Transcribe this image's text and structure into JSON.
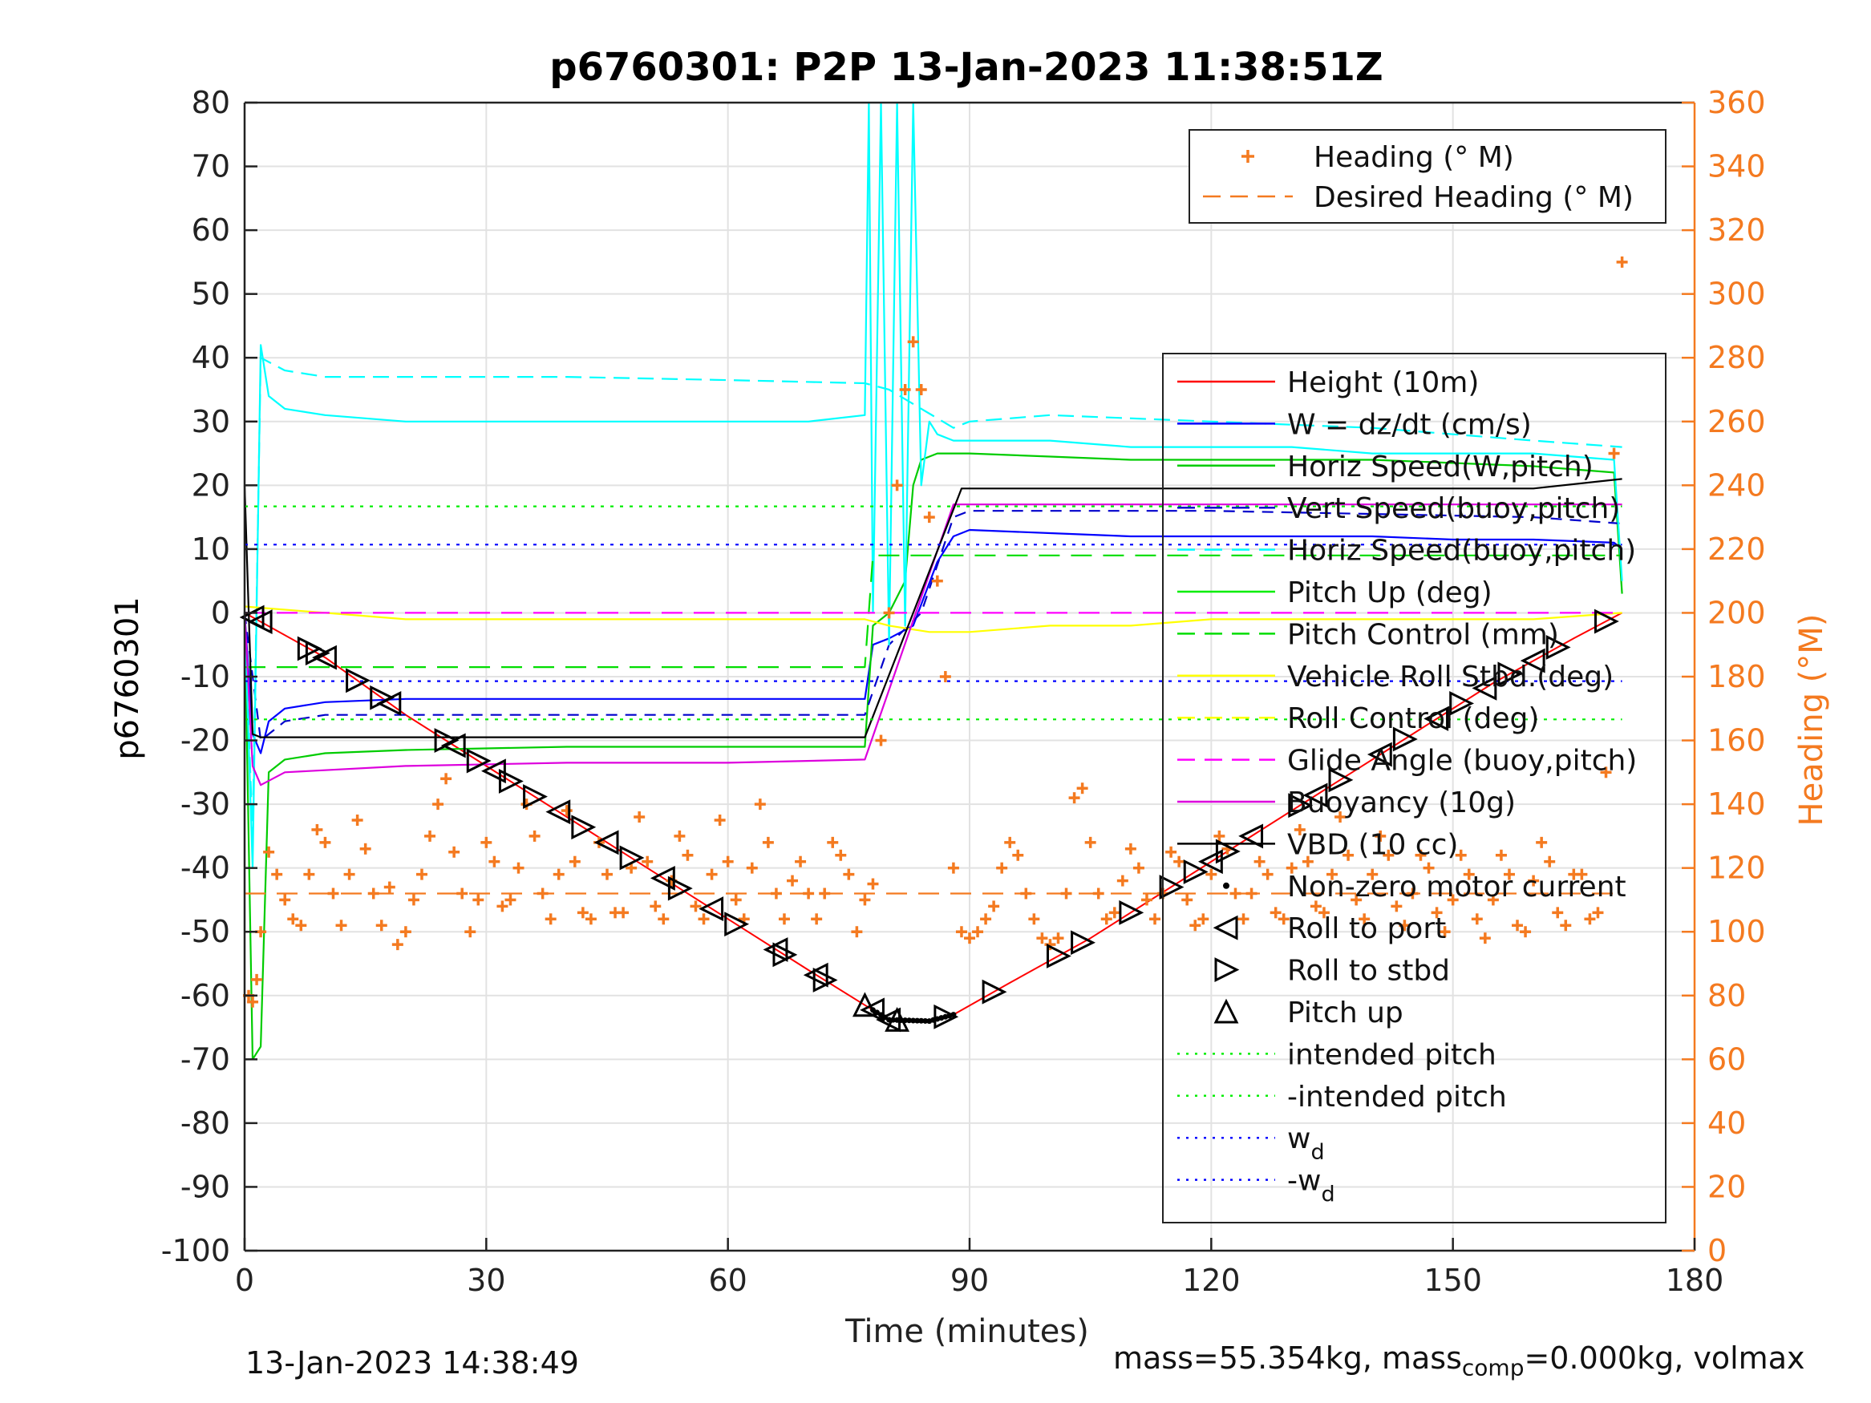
{
  "chart_data": {
    "type": "line",
    "title": "p6760301: P2P 13-Jan-2023 11:38:51Z",
    "xlabel": "Time (minutes)",
    "ylabel": "p6760301",
    "y2label": "Heading (°M)",
    "xlim": [
      0,
      180
    ],
    "ylim": [
      -100,
      80
    ],
    "y2lim": [
      0,
      360
    ],
    "xticks": [
      0,
      30,
      60,
      90,
      120,
      150,
      180
    ],
    "yticks": [
      -100,
      -90,
      -80,
      -70,
      -60,
      -50,
      -40,
      -30,
      -20,
      -10,
      0,
      10,
      20,
      30,
      40,
      50,
      60,
      70,
      80
    ],
    "y2ticks": [
      0,
      20,
      40,
      60,
      80,
      100,
      120,
      140,
      160,
      180,
      200,
      220,
      240,
      260,
      280,
      300,
      320,
      340,
      360
    ],
    "grid": true,
    "colors": {
      "height": "#ff0000",
      "w": "#0000ff",
      "horiz_speed_w": "#00cc00",
      "vert_speed_buoy": "#0000cc",
      "horiz_speed_buoy": "#00ffff",
      "pitch_up": "#00ee00",
      "pitch_control": "#00dd00",
      "roll_std": "#ffff00",
      "roll_control": "#ffff00",
      "glide_angle": "#ff00ff",
      "buoyancy": "#dd00dd",
      "vbd": "#000000",
      "heading": "#f47a20",
      "intended_pitch": "#00ee00",
      "wd": "#0000ff"
    },
    "legend_heading": [
      {
        "label": "Heading (° M)",
        "style": "plus"
      },
      {
        "label": "Desired Heading (° M)",
        "style": "dash"
      }
    ],
    "legend_main": [
      {
        "label": "Height (10m)",
        "style": "solid",
        "color": "#ff0000"
      },
      {
        "label": "W = dz/dt (cm/s)",
        "style": "solid",
        "color": "#0000ff"
      },
      {
        "label": "Horiz Speed(W,pitch)",
        "style": "solid",
        "color": "#00cc00"
      },
      {
        "label": "Vert Speed(buoy,pitch)",
        "style": "dash",
        "color": "#0000cc"
      },
      {
        "label": "Horiz Speed(buoy,pitch)",
        "style": "dash",
        "color": "#00ffff"
      },
      {
        "label": "Pitch Up (deg)",
        "style": "solid",
        "color": "#00ee00"
      },
      {
        "label": "Pitch Control (mm)",
        "style": "dash",
        "color": "#00dd00"
      },
      {
        "label": "Vehicle Roll Stbd.(deg)",
        "style": "solid",
        "color": "#ffff00"
      },
      {
        "label": "Roll Control (deg)",
        "style": "dash",
        "color": "#ffff00"
      },
      {
        "label": "Glide Angle (buoy,pitch)",
        "style": "dash",
        "color": "#ff00ff"
      },
      {
        "label": "Buoyancy (10g)",
        "style": "solid",
        "color": "#dd00dd"
      },
      {
        "label": "VBD (10 cc)",
        "style": "solid",
        "color": "#000000"
      },
      {
        "label": "Non-zero motor current",
        "style": "dot",
        "color": "#000000"
      },
      {
        "label": "Roll to port",
        "style": "tri-left",
        "color": "#000000"
      },
      {
        "label": "Roll to stbd",
        "style": "tri-right",
        "color": "#000000"
      },
      {
        "label": "Pitch up",
        "style": "tri-up",
        "color": "#000000"
      },
      {
        "label": "intended pitch",
        "style": "dotted",
        "color": "#00ee00"
      },
      {
        "label": "-intended pitch",
        "style": "dotted",
        "color": "#00ee00"
      },
      {
        "label": "w",
        "sub": "d",
        "style": "dotted",
        "color": "#0000ff"
      },
      {
        "label": "-w",
        "sub": "d",
        "style": "dotted",
        "color": "#0000ff"
      }
    ],
    "series": [
      {
        "key": "height",
        "axis": "left",
        "dash": "",
        "x": [
          0,
          10,
          20,
          30,
          40,
          50,
          60,
          70,
          77,
          80,
          85,
          88,
          95,
          105,
          115,
          125,
          135,
          145,
          155,
          165,
          171
        ],
        "y": [
          0,
          -7,
          -16,
          -24,
          -32,
          -40,
          -48,
          -56,
          -61.5,
          -63.8,
          -64,
          -63,
          -58,
          -51,
          -43,
          -35,
          -27,
          -19,
          -11,
          -4,
          0
        ]
      },
      {
        "key": "w",
        "axis": "left",
        "dash": "",
        "x": [
          0,
          1,
          2,
          3,
          5,
          10,
          20,
          40,
          60,
          77,
          78,
          80,
          83,
          86,
          88,
          90,
          100,
          110,
          120,
          130,
          140,
          150,
          160,
          170,
          171
        ],
        "y": [
          0,
          -19,
          -22,
          -17,
          -15,
          -14,
          -13.5,
          -13.5,
          -13.5,
          -13.5,
          -5,
          -4,
          -2,
          8,
          12,
          13,
          12.5,
          12,
          12,
          12,
          12,
          11.5,
          11.5,
          11,
          10
        ]
      },
      {
        "key": "horiz_speed_w",
        "axis": "left",
        "dash": "",
        "x": [
          0,
          1,
          2,
          3,
          5,
          10,
          20,
          40,
          60,
          77,
          78,
          80,
          82,
          83,
          84,
          86,
          88,
          90,
          100,
          110,
          120,
          130,
          140,
          150,
          160,
          170,
          171
        ],
        "y": [
          0,
          -70,
          -68,
          -25,
          -23,
          -22,
          -21.5,
          -21,
          -21,
          -21,
          -2,
          0,
          5,
          20,
          24,
          25,
          25,
          25,
          24.5,
          24,
          24,
          24,
          24,
          23.5,
          23,
          22,
          3
        ]
      },
      {
        "key": "vert_speed_buoy",
        "axis": "left",
        "dash": "14,10",
        "x": [
          0,
          2,
          5,
          10,
          20,
          40,
          60,
          77,
          80,
          84,
          88,
          90,
          100,
          120,
          140,
          160,
          171
        ],
        "y": [
          0,
          -20,
          -17,
          -16,
          -16,
          -16,
          -16,
          -16,
          -5,
          0,
          15,
          16,
          16,
          16,
          15.5,
          15,
          14
        ]
      },
      {
        "key": "horiz_speed_buoy",
        "axis": "left",
        "dash": "20,10",
        "x": [
          0,
          1,
          2,
          5,
          10,
          20,
          40,
          60,
          77,
          80,
          88,
          90,
          100,
          120,
          140,
          160,
          171
        ],
        "y": [
          0,
          -35,
          40,
          38,
          37,
          37,
          37,
          36.5,
          36,
          35,
          29,
          30,
          31,
          30,
          29,
          27,
          26
        ]
      },
      {
        "key": "horiz_speed_buoy_solid",
        "axis": "left",
        "dash": "",
        "x": [
          0,
          1,
          2,
          3,
          5,
          10,
          20,
          40,
          60,
          70,
          77,
          77.5,
          78,
          79,
          80,
          81,
          82,
          83,
          84,
          85,
          86,
          88,
          90,
          100,
          110,
          120,
          130,
          140,
          150,
          160,
          170,
          171
        ],
        "y": [
          0,
          -40,
          42,
          34,
          32,
          31,
          30,
          30,
          30,
          30,
          31,
          80,
          0,
          80,
          -5,
          80,
          -2,
          80,
          20,
          30,
          28,
          27,
          27,
          27,
          26,
          26,
          26,
          25,
          25,
          25,
          24,
          5
        ]
      },
      {
        "key": "pitch_control",
        "axis": "left",
        "dash": "26,14",
        "x": [
          0,
          77,
          78,
          90,
          171
        ],
        "y": [
          -8.5,
          -8.5,
          9,
          9,
          9
        ]
      },
      {
        "key": "roll_std",
        "axis": "left",
        "dash": "",
        "x": [
          0,
          10,
          20,
          30,
          40,
          50,
          60,
          70,
          77,
          80,
          85,
          90,
          100,
          110,
          120,
          130,
          140,
          150,
          160,
          171
        ],
        "y": [
          1,
          0,
          -1,
          -1,
          -1,
          -1,
          -1,
          -1,
          -1,
          -2,
          -3,
          -3,
          -2,
          -2,
          -1,
          -1,
          -1,
          -1,
          -1,
          0
        ]
      },
      {
        "key": "glide_angle",
        "axis": "left",
        "dash": "26,14",
        "x": [
          0,
          77,
          78,
          171
        ],
        "y": [
          0,
          0,
          0,
          0
        ]
      },
      {
        "key": "buoyancy",
        "axis": "left",
        "dash": "",
        "x": [
          0,
          1,
          2,
          5,
          20,
          40,
          60,
          77,
          88,
          171
        ],
        "y": [
          0,
          -24,
          -27,
          -25,
          -24,
          -23.5,
          -23.5,
          -23,
          17,
          17
        ]
      },
      {
        "key": "vbd",
        "axis": "left",
        "dash": "",
        "x": [
          0,
          1,
          2,
          20,
          40,
          60,
          77,
          89,
          160,
          171
        ],
        "y": [
          20,
          -19,
          -19.5,
          -19.5,
          -19.5,
          -19.5,
          -19.5,
          19.5,
          19.5,
          21
        ]
      },
      {
        "key": "intended_pitch",
        "axis": "left",
        "dash": "4,8",
        "x": [
          0,
          171
        ],
        "y": [
          16.7,
          16.7
        ]
      },
      {
        "key": "neg_intended_pitch",
        "axis": "left",
        "dash": "4,8",
        "x": [
          0,
          171
        ],
        "y": [
          -16.7,
          -16.7
        ]
      },
      {
        "key": "wd",
        "axis": "left",
        "dash": "4,8",
        "x": [
          0,
          171
        ],
        "y": [
          10.7,
          10.7
        ]
      },
      {
        "key": "neg_wd",
        "axis": "left",
        "dash": "4,8",
        "x": [
          0,
          171
        ],
        "y": [
          -10.7,
          -10.7
        ]
      },
      {
        "key": "desired_heading",
        "axis": "right",
        "dash": "26,14",
        "x": [
          0,
          171
        ],
        "y": [
          112,
          112
        ]
      }
    ],
    "heading": {
      "x": [
        0.5,
        1,
        1.5,
        2,
        3,
        4,
        5,
        6,
        7,
        8,
        9,
        10,
        11,
        12,
        13,
        14,
        15,
        16,
        17,
        18,
        19,
        20,
        21,
        22,
        23,
        24,
        25,
        26,
        27,
        28,
        29,
        30,
        31,
        32,
        33,
        34,
        35,
        36,
        37,
        38,
        39,
        40,
        41,
        42,
        43,
        44,
        45,
        46,
        47,
        48,
        49,
        50,
        51,
        52,
        53,
        54,
        55,
        56,
        57,
        58,
        59,
        60,
        61,
        62,
        63,
        64,
        65,
        66,
        67,
        68,
        69,
        70,
        71,
        72,
        73,
        74,
        75,
        76,
        77,
        78,
        79,
        80,
        81,
        82,
        83,
        84,
        85,
        86,
        87,
        88,
        89,
        90,
        91,
        92,
        93,
        94,
        95,
        96,
        97,
        98,
        99,
        100,
        101,
        102,
        103,
        104,
        105,
        106,
        107,
        108,
        109,
        110,
        111,
        112,
        113,
        114,
        115,
        116,
        117,
        118,
        119,
        120,
        121,
        122,
        123,
        124,
        125,
        126,
        127,
        128,
        129,
        130,
        131,
        132,
        133,
        134,
        135,
        136,
        137,
        138,
        139,
        140,
        141,
        142,
        143,
        144,
        145,
        146,
        147,
        148,
        149,
        150,
        151,
        152,
        153,
        154,
        155,
        156,
        157,
        158,
        159,
        160,
        161,
        162,
        163,
        164,
        165,
        166,
        167,
        168,
        169,
        170,
        171
      ],
      "y": [
        80,
        78,
        85,
        100,
        125,
        118,
        110,
        104,
        102,
        118,
        132,
        128,
        112,
        102,
        118,
        135,
        126,
        112,
        102,
        114,
        96,
        100,
        110,
        118,
        130,
        140,
        148,
        125,
        112,
        100,
        110,
        128,
        122,
        108,
        110,
        120,
        140,
        130,
        112,
        104,
        118,
        138,
        122,
        106,
        104,
        128,
        118,
        106,
        106,
        120,
        136,
        122,
        108,
        104,
        116,
        130,
        124,
        108,
        104,
        118,
        135,
        122,
        110,
        104,
        120,
        140,
        128,
        112,
        104,
        116,
        122,
        112,
        104,
        112,
        128,
        124,
        118,
        100,
        110,
        115,
        160,
        200,
        240,
        270,
        285,
        270,
        230,
        210,
        180,
        120,
        100,
        98,
        100,
        104,
        108,
        120,
        128,
        124,
        112,
        104,
        98,
        96,
        98,
        112,
        142,
        145,
        128,
        112,
        104,
        106,
        116,
        126,
        120,
        110,
        104,
        112,
        125,
        122,
        110,
        102,
        104,
        118,
        130,
        126,
        112,
        104,
        112,
        122,
        118,
        106,
        104,
        120,
        132,
        122,
        108,
        106,
        118,
        136,
        124,
        110,
        104,
        118,
        130,
        124,
        108,
        102,
        112,
        124,
        120,
        106,
        100,
        110,
        124,
        118,
        104,
        98,
        110,
        124,
        118,
        102,
        100,
        116,
        128,
        122,
        106,
        102,
        118,
        118,
        104,
        106,
        150,
        250,
        310
      ]
    },
    "markers": {
      "roll_to_port_x": [
        1,
        2,
        10,
        18,
        26,
        31,
        39,
        45,
        52,
        58,
        66,
        71,
        78,
        80,
        120,
        125,
        133,
        141,
        148,
        154,
        160
      ],
      "roll_to_stbd_x": [
        8,
        9,
        14,
        17,
        25,
        29,
        33,
        36,
        42,
        48,
        54,
        61,
        67,
        72,
        87,
        93,
        101,
        104,
        110,
        115,
        118,
        122,
        131,
        136,
        144,
        151,
        157,
        163,
        169
      ],
      "pitch_up_x": [
        77,
        81
      ]
    },
    "footer_left": "13-Jan-2023 14:38:49",
    "footer_right_parts": [
      "mass=55.354kg, mass",
      "comp",
      "=0.000kg, volmax"
    ]
  }
}
